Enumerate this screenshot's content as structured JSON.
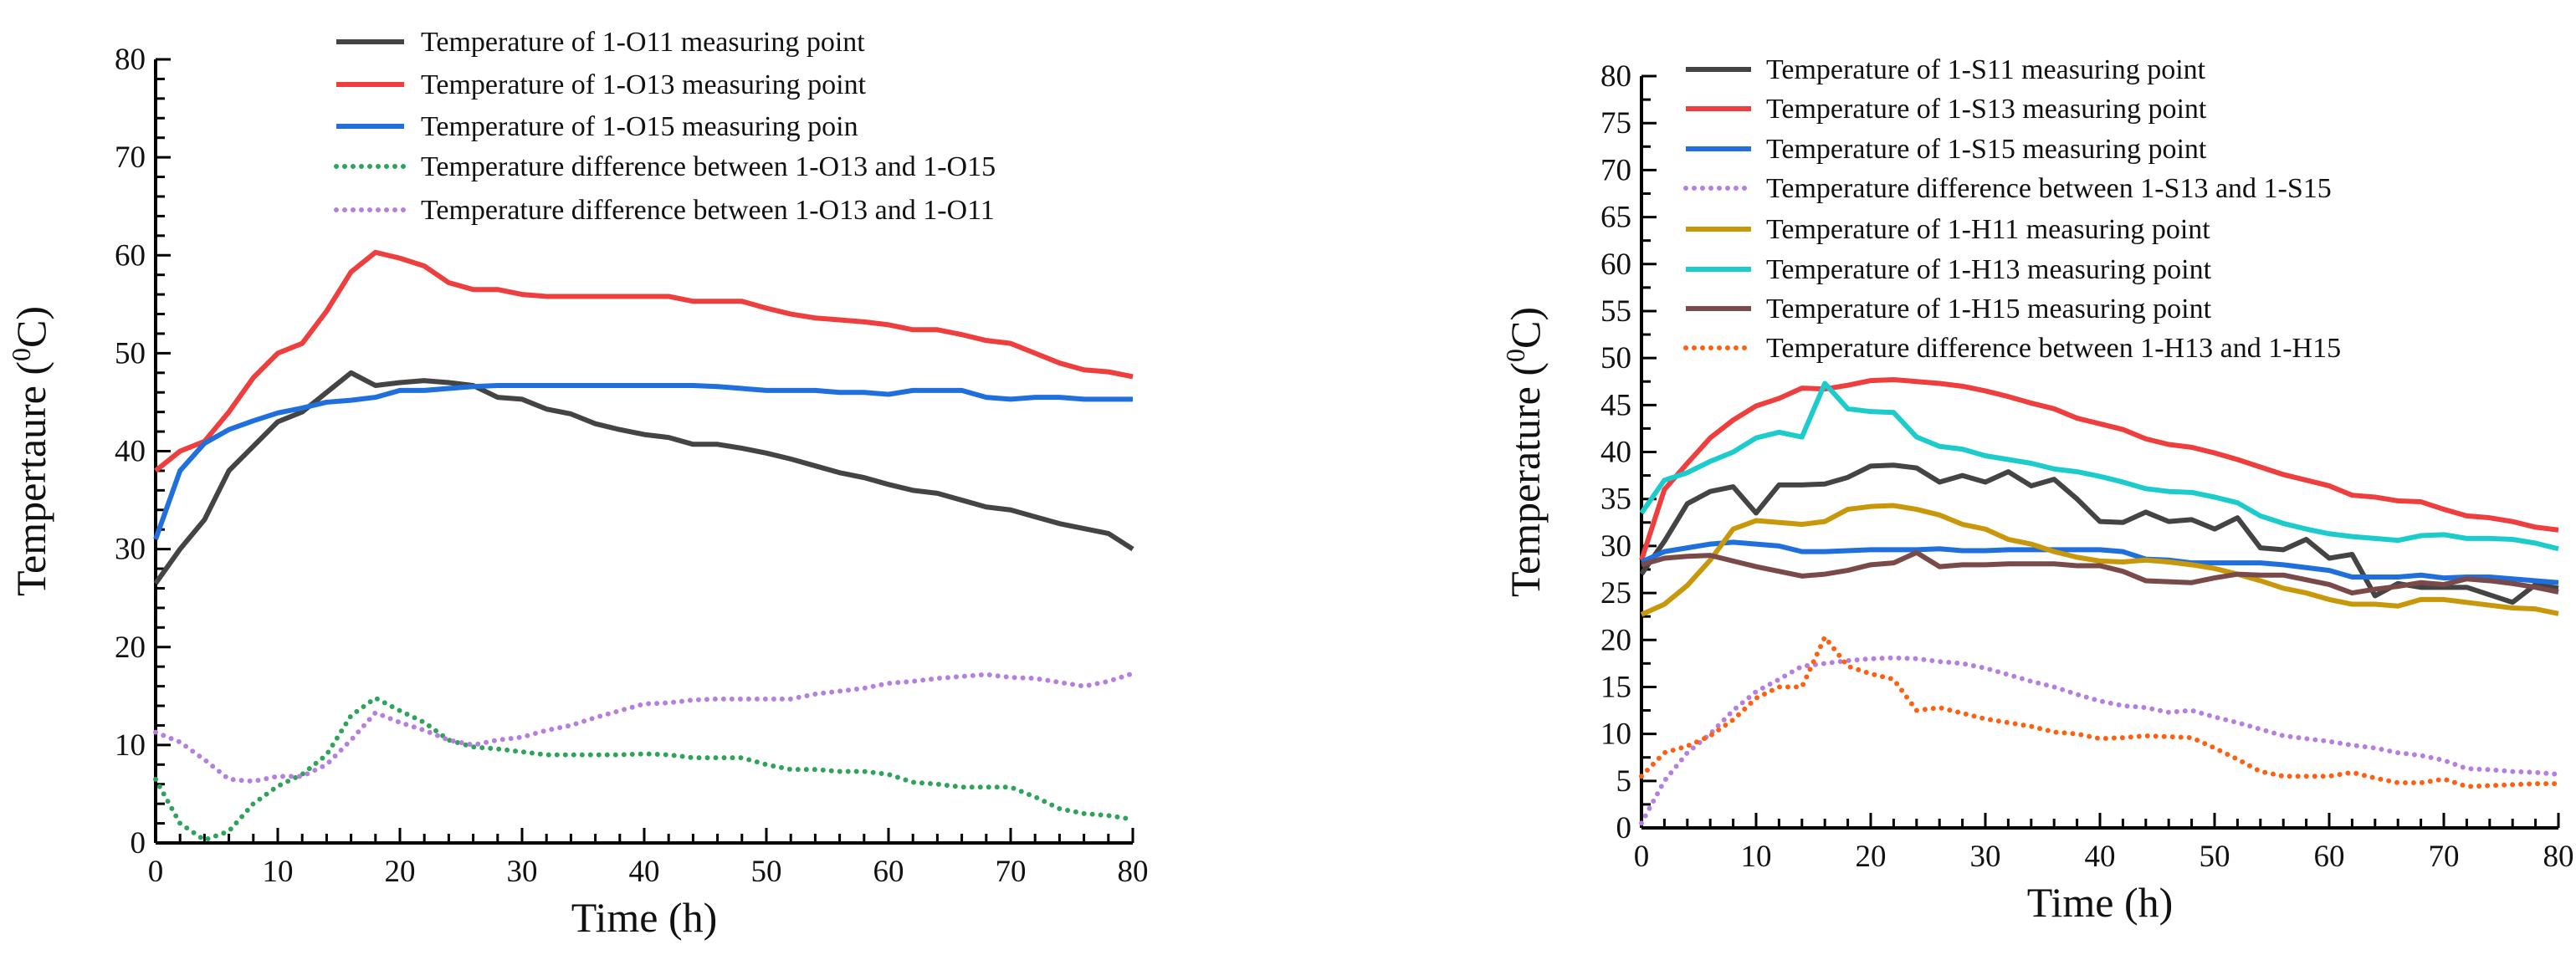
{
  "chart_data": [
    {
      "type": "line",
      "title": "",
      "xlabel": "Time (h)",
      "ylabel": "Tempertaure (",
      "ylabel_sup": "0",
      "ylabel_unit": "C)",
      "xlim": [
        0,
        80
      ],
      "ylim": [
        0,
        80
      ],
      "xticks": [
        0,
        10,
        20,
        30,
        40,
        50,
        60,
        70,
        80
      ],
      "yticks": [
        0,
        10,
        20,
        30,
        40,
        50,
        60,
        70,
        80
      ],
      "grid": false,
      "legend_placement": "top",
      "x": [
        0,
        2,
        4,
        6,
        8,
        10,
        12,
        14,
        16,
        18,
        20,
        22,
        24,
        26,
        28,
        30,
        32,
        34,
        36,
        38,
        40,
        42,
        44,
        46,
        48,
        50,
        52,
        54,
        56,
        58,
        60,
        62,
        64,
        66,
        68,
        70,
        72,
        74,
        76,
        78,
        80
      ],
      "series": [
        {
          "name": "Temperature of 1-O11 measuring point",
          "color": "#444444",
          "style": "solid",
          "values": [
            26.5,
            30,
            33,
            38,
            40.5,
            43,
            44,
            46,
            48,
            46.7,
            47,
            47.2,
            47,
            46.7,
            45.5,
            45.3,
            44.3,
            43.8,
            42.8,
            42.2,
            41.7,
            41.4,
            40.7,
            40.7,
            40.3,
            39.8,
            39.2,
            38.5,
            37.8,
            37.3,
            36.6,
            36,
            35.7,
            35,
            34.3,
            34,
            33.3,
            32.6,
            32.1,
            31.6,
            30
          ]
        },
        {
          "name": "Temperature of 1-O13 measuring point",
          "color": "#ee3e3e",
          "style": "solid",
          "values": [
            38,
            40,
            41,
            44,
            47.5,
            50,
            51,
            54.3,
            58.3,
            60.3,
            59.7,
            58.9,
            57.2,
            56.5,
            56.5,
            56,
            55.8,
            55.8,
            55.8,
            55.8,
            55.8,
            55.8,
            55.3,
            55.3,
            55.3,
            54.6,
            54,
            53.6,
            53.4,
            53.2,
            52.9,
            52.4,
            52.4,
            51.9,
            51.3,
            51,
            50,
            49,
            48.3,
            48.1,
            47.6
          ]
        },
        {
          "name": "Temperature of 1-O15 measuring poin",
          "color": "#1f6fdc",
          "style": "solid",
          "values": [
            31,
            38,
            40.8,
            42.2,
            43.1,
            43.9,
            44.4,
            45,
            45.2,
            45.5,
            46.2,
            46.2,
            46.4,
            46.6,
            46.7,
            46.7,
            46.7,
            46.7,
            46.7,
            46.7,
            46.7,
            46.7,
            46.7,
            46.6,
            46.4,
            46.2,
            46.2,
            46.2,
            46,
            46,
            45.8,
            46.2,
            46.2,
            46.2,
            45.5,
            45.3,
            45.5,
            45.5,
            45.3,
            45.3,
            45.3
          ]
        },
        {
          "name": "Temperature difference between 1-O13 and 1-O15",
          "color": "#2ea35a",
          "style": "dotted",
          "values": [
            6.5,
            2,
            0.3,
            1.2,
            4,
            5.8,
            7,
            9,
            13,
            14.8,
            13.5,
            12.3,
            10.5,
            9.8,
            9.6,
            9.3,
            9,
            9,
            9,
            9,
            9.1,
            9,
            8.7,
            8.7,
            8.7,
            8,
            7.5,
            7.5,
            7.3,
            7.3,
            7,
            6.2,
            6,
            5.7,
            5.7,
            5.7,
            4.7,
            3.5,
            3,
            2.8,
            2.4
          ]
        },
        {
          "name": "Temperature difference between 1-O13 and 1-O11",
          "color": "#b57fe0",
          "style": "dotted",
          "values": [
            11.3,
            10.3,
            8.5,
            6.5,
            6.3,
            6.8,
            6.8,
            8,
            10.5,
            13.3,
            12.3,
            11.5,
            10.5,
            10,
            10.5,
            10.8,
            11.5,
            12,
            12.8,
            13.5,
            14.2,
            14.3,
            14.6,
            14.7,
            14.7,
            14.7,
            14.7,
            15.2,
            15.5,
            15.8,
            16.3,
            16.5,
            16.8,
            17,
            17.2,
            16.9,
            16.8,
            16.4,
            16,
            16.5,
            17.3
          ]
        }
      ]
    },
    {
      "type": "line",
      "title": "",
      "xlabel": "Time (h)",
      "ylabel": "Temperature (",
      "ylabel_sup": "0",
      "ylabel_unit": "C)",
      "xlim": [
        0,
        80
      ],
      "ylim": [
        0,
        80
      ],
      "xticks": [
        0,
        10,
        20,
        30,
        40,
        50,
        60,
        70,
        80
      ],
      "yticks": [
        0,
        5,
        10,
        15,
        20,
        25,
        30,
        35,
        40,
        45,
        50,
        55,
        60,
        65,
        70,
        75,
        80
      ],
      "grid": false,
      "legend_placement": "top-left",
      "x": [
        0,
        2,
        4,
        6,
        8,
        10,
        12,
        14,
        16,
        18,
        20,
        22,
        24,
        26,
        28,
        30,
        32,
        34,
        36,
        38,
        40,
        42,
        44,
        46,
        48,
        50,
        52,
        54,
        56,
        58,
        60,
        62,
        64,
        66,
        68,
        70,
        72,
        74,
        76,
        78,
        80
      ],
      "series": [
        {
          "name": "Temperature of 1-S11 measuring point",
          "color": "#444444",
          "style": "solid",
          "values": [
            27,
            30.5,
            34.5,
            35.8,
            36.3,
            33.5,
            36.5,
            36.5,
            36.6,
            37.3,
            38.5,
            38.6,
            38.3,
            36.8,
            37.5,
            36.8,
            37.9,
            36.4,
            37.1,
            35,
            32.6,
            32.5,
            33.6,
            32.6,
            32.8,
            31.8,
            33,
            29.8,
            29.6,
            30.7,
            28.7,
            29.1,
            24.7,
            26,
            25.6,
            25.6,
            25.6,
            24.8,
            24,
            25.9,
            25.5
          ]
        },
        {
          "name": "Temperature of 1-S13 measuring point",
          "color": "#ee3e3e",
          "style": "solid",
          "values": [
            28.5,
            36,
            38.8,
            41.5,
            43.4,
            44.9,
            45.7,
            46.8,
            46.7,
            47.1,
            47.6,
            47.7,
            47.5,
            47.3,
            47,
            46.5,
            45.9,
            45.2,
            44.6,
            43.6,
            43,
            42.4,
            41.4,
            40.8,
            40.5,
            39.9,
            39.2,
            38.4,
            37.6,
            37,
            36.4,
            35.4,
            35.2,
            34.8,
            34.7,
            33.9,
            33.2,
            33,
            32.6,
            32,
            31.7
          ]
        },
        {
          "name": "Temperature of 1-S15 measuring point",
          "color": "#1f6fdc",
          "style": "solid",
          "values": [
            28.3,
            29.4,
            29.8,
            30.2,
            30.4,
            30.2,
            30,
            29.4,
            29.4,
            29.5,
            29.6,
            29.6,
            29.6,
            29.7,
            29.5,
            29.5,
            29.6,
            29.6,
            29.6,
            29.6,
            29.6,
            29.4,
            28.6,
            28.5,
            28.2,
            28.2,
            28.2,
            28.2,
            28,
            27.7,
            27.4,
            26.7,
            26.7,
            26.7,
            26.9,
            26.6,
            26.7,
            26.7,
            26.5,
            26.3,
            26.1
          ]
        },
        {
          "name": "Temperature difference between 1-S13 and 1-S15",
          "color": "#b57fe0",
          "style": "dotted",
          "values": [
            0.5,
            5,
            8,
            10,
            12.5,
            14.5,
            15.8,
            17.2,
            17.5,
            17.8,
            18,
            18.1,
            18,
            17.7,
            17.5,
            17,
            16.3,
            15.6,
            15,
            14.2,
            13.5,
            13,
            12.8,
            12.3,
            12.5,
            11.8,
            11.2,
            10.5,
            9.8,
            9.5,
            9.2,
            8.8,
            8.5,
            8,
            7.7,
            7.2,
            6.3,
            6.2,
            6,
            5.9,
            5.7
          ]
        },
        {
          "name": "Temperature of 1-H11 measuring point",
          "color": "#c8980a",
          "style": "solid",
          "values": [
            22.7,
            23.8,
            25.8,
            28.5,
            31.8,
            32.7,
            32.5,
            32.3,
            32.6,
            33.9,
            34.2,
            34.3,
            33.9,
            33.3,
            32.3,
            31.8,
            30.7,
            30.2,
            29.4,
            28.8,
            28.4,
            28.3,
            28.5,
            28.3,
            28,
            27.6,
            27,
            26.3,
            25.5,
            25,
            24.3,
            23.8,
            23.8,
            23.6,
            24.3,
            24.3,
            24,
            23.7,
            23.4,
            23.3,
            22.8
          ]
        },
        {
          "name": "Temperature of 1-H13 measuring point",
          "color": "#1ccbcb",
          "style": "solid",
          "values": [
            33.5,
            37,
            37.8,
            39,
            40,
            41.5,
            42.1,
            41.6,
            47.3,
            44.6,
            44.3,
            44.2,
            41.6,
            40.6,
            40.3,
            39.6,
            39.2,
            38.8,
            38.2,
            37.9,
            37.4,
            36.8,
            36.1,
            35.8,
            35.7,
            35.2,
            34.6,
            33.2,
            32.4,
            31.8,
            31.3,
            31,
            30.8,
            30.6,
            31.1,
            31.2,
            30.8,
            30.8,
            30.7,
            30.3,
            29.7
          ]
        },
        {
          "name": "Temperature of 1-H15 measuring point",
          "color": "#7a4a4a",
          "style": "solid",
          "values": [
            28,
            28.7,
            28.9,
            29,
            28.4,
            27.8,
            27.3,
            26.8,
            27,
            27.4,
            28,
            28.2,
            29.3,
            27.8,
            28,
            28,
            28.1,
            28.1,
            28.1,
            27.9,
            27.9,
            27.3,
            26.3,
            26.2,
            26.1,
            26.6,
            27,
            26.9,
            26.9,
            26.4,
            25.9,
            25,
            25.4,
            25.7,
            26.1,
            25.9,
            26.5,
            26.3,
            26,
            25.6,
            25.1
          ]
        },
        {
          "name": "Temperature difference between 1-H13 and 1-H15",
          "color": "#ff6010",
          "style": "dotted",
          "values": [
            5.5,
            8,
            8.7,
            9.8,
            11.5,
            13.8,
            15,
            15,
            20.3,
            17.2,
            16.4,
            15.8,
            12.5,
            12.8,
            12.2,
            11.6,
            11.2,
            10.8,
            10.2,
            10,
            9.5,
            9.6,
            9.8,
            9.7,
            9.6,
            8.5,
            7.3,
            6,
            5.5,
            5.5,
            5.5,
            5.9,
            5.3,
            4.8,
            4.8,
            5.2,
            4.4,
            4.5,
            4.6,
            4.7,
            4.7
          ]
        }
      ]
    }
  ]
}
